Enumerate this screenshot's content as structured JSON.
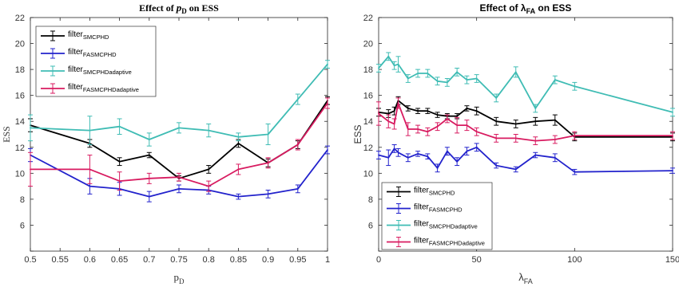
{
  "chart_data": [
    {
      "type": "line",
      "title_prefix": "Effect of ",
      "title_symbol": "p",
      "title_symbol_sub": "D",
      "title_suffix": " on ESS",
      "xlabel": "p",
      "xlabel_sub": "D",
      "ylabel": "ESS",
      "xlim": [
        0.5,
        1
      ],
      "ylim": [
        4,
        22
      ],
      "xticks": [
        0.5,
        0.55,
        0.6,
        0.65,
        0.7,
        0.75,
        0.8,
        0.85,
        0.9,
        0.95,
        1
      ],
      "xtick_labels": [
        "0.5",
        "0.55",
        "0.6",
        "0.65",
        "0.7",
        "0.75",
        "0.8",
        "0.85",
        "0.9",
        "0.95",
        "1"
      ],
      "yticks": [
        4,
        6,
        8,
        10,
        12,
        14,
        16,
        18,
        20,
        22
      ],
      "ytick_labels": [
        "",
        "6",
        "8",
        "10",
        "12",
        "14",
        "16",
        "18",
        "20",
        "22"
      ],
      "grid": false,
      "legend_position": "top-left",
      "x": [
        0.5,
        0.6,
        0.65,
        0.7,
        0.75,
        0.8,
        0.85,
        0.9,
        0.95,
        1
      ],
      "series": [
        {
          "name": "filter",
          "name_sub": "SMCPHD",
          "color": "#000000",
          "values": [
            13.7,
            12.3,
            10.9,
            11.4,
            9.6,
            10.3,
            12.3,
            10.8,
            12.2,
            15.6
          ],
          "errors": [
            0.5,
            0.3,
            0.3,
            0.2,
            0.2,
            0.3,
            0.3,
            0.3,
            0.3,
            0.3
          ]
        },
        {
          "name": "filter",
          "name_sub": "FASMCPHD",
          "color": "#2222cc",
          "values": [
            11.4,
            9.0,
            8.8,
            8.2,
            8.8,
            8.7,
            8.2,
            8.4,
            8.8,
            11.8
          ],
          "errors": [
            0.5,
            0.6,
            0.5,
            0.4,
            0.3,
            0.3,
            0.2,
            0.3,
            0.3,
            0.3
          ]
        },
        {
          "name": "filter",
          "name_sub": "SMCPHDadaptive",
          "color": "#3fbcb4",
          "values": [
            13.5,
            13.3,
            13.6,
            12.6,
            13.5,
            13.3,
            12.8,
            13.0,
            15.7,
            18.4
          ],
          "errors": [
            1.0,
            1.1,
            0.6,
            0.5,
            0.4,
            0.5,
            0.3,
            0.8,
            0.4,
            0.3
          ]
        },
        {
          "name": "filter",
          "name_sub": "FASMCPHDadaptive",
          "color": "#d81b60",
          "values": [
            10.3,
            10.3,
            9.4,
            9.6,
            9.7,
            9.0,
            10.3,
            10.8,
            12.2,
            15.4
          ],
          "errors": [
            1.3,
            1.1,
            0.7,
            0.4,
            0.3,
            0.4,
            0.4,
            0.4,
            0.4,
            0.4
          ]
        }
      ]
    },
    {
      "type": "line",
      "title_prefix": "Effect of ",
      "title_symbol": "λ",
      "title_symbol_sub": "FA",
      "title_suffix": " on ESS",
      "xlabel": "λ",
      "xlabel_sub": "FA",
      "ylabel": "ESS",
      "xlim": [
        0,
        150
      ],
      "ylim": [
        4,
        22
      ],
      "xticks": [
        0,
        50,
        100,
        150
      ],
      "xtick_labels": [
        "0",
        "50",
        "100",
        "150"
      ],
      "yticks": [
        4,
        6,
        8,
        10,
        12,
        14,
        16,
        18,
        20,
        22
      ],
      "ytick_labels": [
        "",
        "6",
        "8",
        "10",
        "12",
        "14",
        "16",
        "18",
        "20",
        "22"
      ],
      "grid": false,
      "legend_position": "bottom-left",
      "x": [
        0,
        5,
        8,
        10,
        15,
        20,
        25,
        30,
        35,
        40,
        45,
        50,
        60,
        70,
        80,
        90,
        100,
        150
      ],
      "series": [
        {
          "name": "filter",
          "name_sub": "SMCPHD",
          "color": "#000000",
          "values": [
            14.7,
            14.6,
            14.8,
            15.6,
            15.0,
            14.8,
            14.8,
            14.5,
            14.4,
            14.4,
            15.0,
            14.8,
            14.0,
            13.8,
            14.0,
            14.1,
            12.8,
            12.8
          ],
          "errors": [
            0.3,
            0.3,
            0.3,
            0.3,
            0.2,
            0.2,
            0.2,
            0.2,
            0.2,
            0.2,
            0.2,
            0.3,
            0.3,
            0.3,
            0.3,
            0.4,
            0.3,
            0.3
          ]
        },
        {
          "name": "filter",
          "name_sub": "FASMCPHD",
          "color": "#2222cc",
          "values": [
            11.4,
            11.2,
            11.9,
            11.6,
            11.2,
            11.5,
            11.3,
            10.4,
            11.7,
            10.9,
            11.7,
            12.0,
            10.6,
            10.3,
            11.4,
            11.2,
            10.1,
            10.2
          ],
          "errors": [
            0.3,
            0.6,
            0.3,
            0.3,
            0.3,
            0.2,
            0.2,
            0.3,
            0.3,
            0.3,
            0.3,
            0.3,
            0.2,
            0.2,
            0.2,
            0.3,
            0.2,
            0.2
          ]
        },
        {
          "name": "filter",
          "name_sub": "SMCPHDadaptive",
          "color": "#3fbcb4",
          "values": [
            18.1,
            19.0,
            18.3,
            18.4,
            17.3,
            17.7,
            17.7,
            17.1,
            17.0,
            17.8,
            17.2,
            17.3,
            15.8,
            17.8,
            15.0,
            17.2,
            16.7,
            14.7
          ],
          "errors": [
            0.3,
            0.3,
            0.3,
            0.6,
            0.3,
            0.3,
            0.3,
            0.3,
            0.3,
            0.3,
            0.3,
            0.3,
            0.3,
            0.4,
            0.3,
            0.3,
            0.3,
            0.3
          ]
        },
        {
          "name": "filter",
          "name_sub": "FASMCPHDadaptive",
          "color": "#d81b60",
          "values": [
            14.6,
            14.0,
            13.8,
            15.4,
            13.4,
            13.4,
            13.2,
            13.6,
            14.2,
            13.7,
            13.7,
            13.2,
            12.7,
            12.7,
            12.5,
            12.6,
            12.9,
            12.9
          ],
          "errors": [
            0.9,
            0.5,
            0.4,
            0.4,
            0.5,
            0.3,
            0.3,
            0.3,
            0.3,
            0.6,
            0.4,
            0.3,
            0.3,
            0.3,
            0.3,
            0.3,
            0.3,
            0.3
          ]
        }
      ]
    }
  ]
}
